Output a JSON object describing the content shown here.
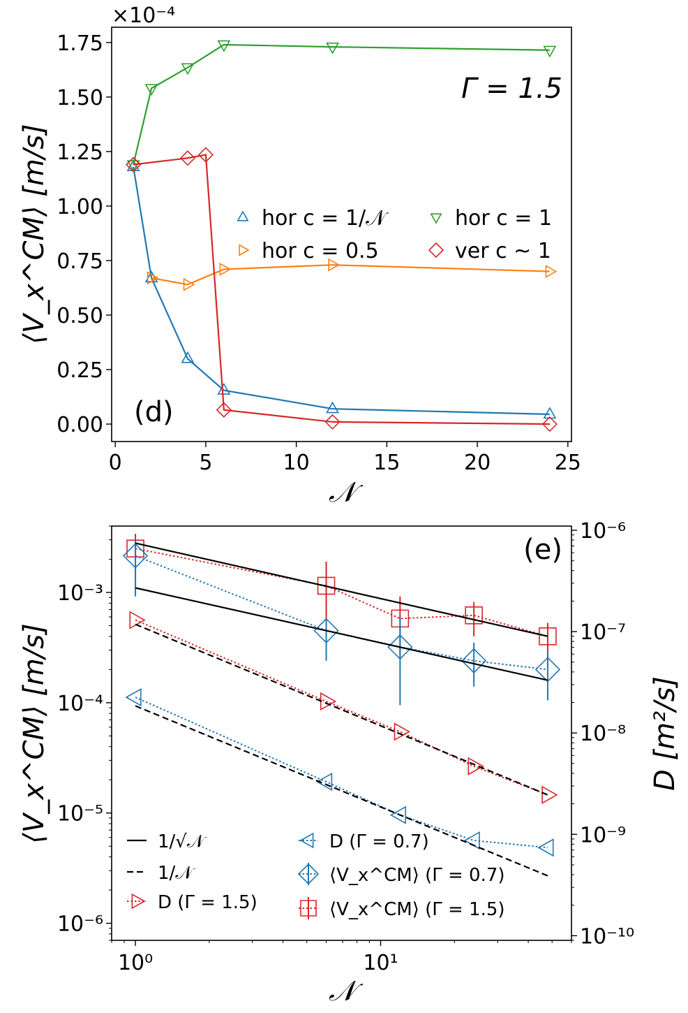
{
  "chart_data": [
    {
      "id": "d",
      "type": "line",
      "panel_label": "(d)",
      "annotation": "Γ = 1.5",
      "xlabel": "𝒩",
      "ylabel": "⟨V_x^CM⟩ [m/s]",
      "offset_text": "×10⁻⁴",
      "xlim": [
        -0.2,
        25.2
      ],
      "ylim": [
        -0.08,
        1.82
      ],
      "xticks": [
        0,
        5,
        10,
        15,
        20,
        25
      ],
      "xticklabels": [
        "0",
        "5",
        "10",
        "15",
        "20",
        "25"
      ],
      "yticks": [
        0,
        0.25,
        0.5,
        0.75,
        1.0,
        1.25,
        1.5,
        1.75
      ],
      "yticklabels": [
        "0.00",
        "0.25",
        "0.50",
        "0.75",
        "1.00",
        "1.25",
        "1.50",
        "1.75"
      ],
      "legend_position": "center-right",
      "series": [
        {
          "name": "hor c = 1/𝒩",
          "color": "#1f77b4",
          "marker": "triangle-up",
          "x": [
            1,
            2,
            4,
            6,
            12,
            24
          ],
          "y": [
            1.18,
            0.67,
            0.3,
            0.155,
            0.07,
            0.045
          ]
        },
        {
          "name": "hor c = 0.5",
          "color": "#ff7f0e",
          "marker": "triangle-right",
          "x": [
            2,
            4,
            6,
            12,
            24
          ],
          "y": [
            0.67,
            0.64,
            0.71,
            0.73,
            0.7
          ]
        },
        {
          "name": "hor c = 1",
          "color": "#2ca02c",
          "marker": "triangle-down",
          "x": [
            1,
            2,
            4,
            6,
            12,
            24
          ],
          "y": [
            1.19,
            1.54,
            1.635,
            1.74,
            1.73,
            1.715
          ]
        },
        {
          "name": "ver c ~ 1",
          "color": "#d62728",
          "marker": "diamond",
          "x": [
            1,
            4,
            5,
            6,
            12,
            24
          ],
          "y": [
            1.19,
            1.22,
            1.235,
            0.065,
            0.01,
            0.0
          ]
        }
      ]
    },
    {
      "id": "e",
      "type": "scatter",
      "scale": "log-log",
      "panel_label": "(e)",
      "xlabel": "𝒩",
      "ylabel": "⟨V_x^CM⟩ [m/s]",
      "ylabel_right": "D [m²/s]",
      "xlim": [
        0.8,
        60
      ],
      "ylim": [
        7e-07,
        0.004
      ],
      "ylim_right": [
        9e-11,
        1.1e-06
      ],
      "xticks": [
        1,
        10
      ],
      "xticklabels": [
        "10⁰",
        "10¹"
      ],
      "yticks": [
        1e-06,
        1e-05,
        0.0001,
        0.001
      ],
      "yticklabels": [
        "10⁻⁶",
        "10⁻⁵",
        "10⁻⁴",
        "10⁻³"
      ],
      "yticks_right": [
        1e-10,
        1e-09,
        1e-08,
        1e-07,
        1e-06
      ],
      "yticklabels_right": [
        "10⁻¹⁰",
        "10⁻⁹",
        "10⁻⁸",
        "10⁻⁷",
        "10⁻⁶"
      ],
      "legend_position": "lower-left",
      "series": [
        {
          "name": "⟨V_x^CM⟩ (Γ = 1.5)",
          "color": "#d62728",
          "marker": "square",
          "axis": "left",
          "x": [
            1,
            6,
            12,
            24,
            48
          ],
          "y": [
            0.0025,
            0.00115,
            0.00058,
            0.00062,
            0.0004
          ],
          "err_low": [
            0.0013,
            0.0005,
            0.00025,
            0.0004,
            0.00022
          ],
          "err_high": [
            0.0034,
            0.0019,
            0.00092,
            0.00082,
            0.00053
          ]
        },
        {
          "name": "⟨V_x^CM⟩ (Γ = 0.7)",
          "color": "#1f77b4",
          "marker": "diamond",
          "axis": "left",
          "x": [
            1,
            6,
            12,
            24,
            48
          ],
          "y": [
            0.00215,
            0.00045,
            0.00032,
            0.00024,
            0.0002
          ],
          "err_low": [
            0.00092,
            0.00024,
            9.5e-05,
            0.00014,
            0.000105
          ],
          "err_high": [
            0.0031,
            0.00056,
            0.0006,
            0.00035,
            0.00029
          ]
        },
        {
          "name": "D (Γ = 1.5)",
          "color": "#d62728",
          "marker": "triangle-right",
          "axis": "right",
          "x": [
            1,
            6,
            12,
            24,
            48
          ],
          "y": [
            1.3e-07,
            2.05e-08,
            1.03e-08,
            4.7e-09,
            2.45e-09
          ]
        },
        {
          "name": "D (Γ = 0.7)",
          "color": "#1f77b4",
          "marker": "triangle-left",
          "axis": "right",
          "x": [
            1,
            6,
            12,
            24,
            48
          ],
          "y": [
            2.25e-08,
            3.3e-09,
            1.55e-09,
            8.7e-10,
            7.4e-10
          ]
        },
        {
          "name": "1/√𝒩",
          "color": "#000000",
          "style": "solid",
          "axis": "left",
          "x": [
            1,
            48
          ],
          "y": [
            0.0011,
            0.00016
          ]
        },
        {
          "name": "1/√𝒩",
          "color": "#000000",
          "style": "solid",
          "axis": "left",
          "x": [
            1,
            48
          ],
          "y": [
            0.0028,
            0.0004
          ]
        },
        {
          "name": "1/𝒩",
          "color": "#000000",
          "style": "dashed",
          "axis": "right",
          "x": [
            1,
            48
          ],
          "y": [
            1.18e-07,
            2.45e-09
          ]
        },
        {
          "name": "1/𝒩",
          "color": "#000000",
          "style": "dashed",
          "axis": "right",
          "x": [
            1,
            48
          ],
          "y": [
            1.85e-08,
            3.9e-10
          ]
        }
      ],
      "legend": [
        {
          "label": "1/√𝒩",
          "kind": "line-solid"
        },
        {
          "label": "1/𝒩",
          "kind": "line-dashed"
        },
        {
          "label": "D (Γ = 1.5)",
          "kind": "marker",
          "series": 2
        },
        {
          "label": "D (Γ = 0.7)",
          "kind": "marker",
          "series": 3
        },
        {
          "label": "⟨V_x^CM⟩ (Γ = 0.7)",
          "kind": "marker-err",
          "series": 1
        },
        {
          "label": "⟨V_x^CM⟩ (Γ = 1.5)",
          "kind": "marker-err",
          "series": 0
        }
      ]
    }
  ]
}
